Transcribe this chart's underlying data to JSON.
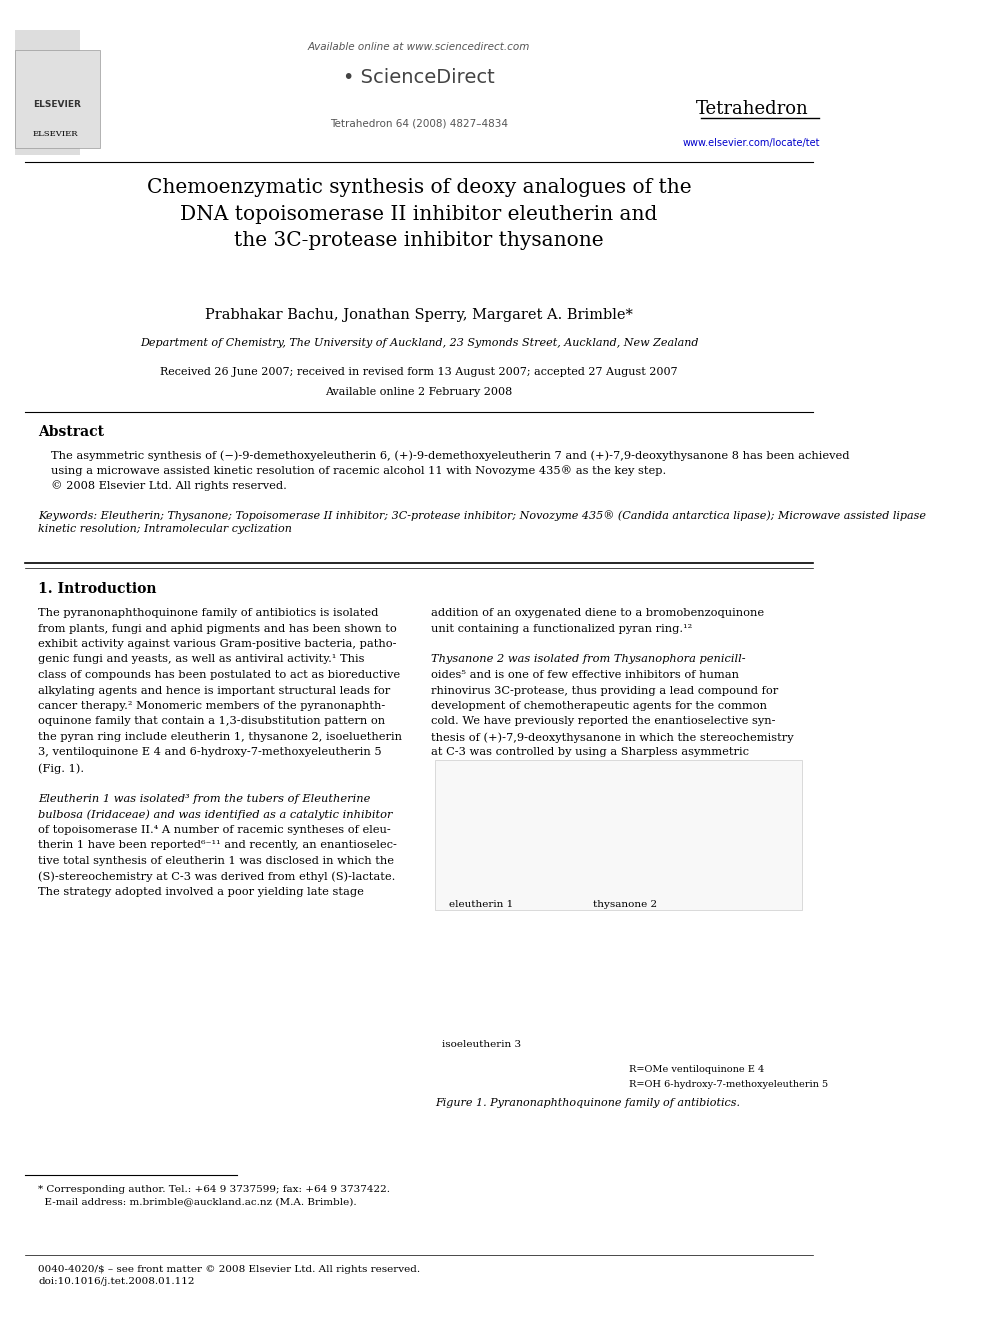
{
  "page_width": 9.92,
  "page_height": 13.23,
  "bg_color": "#ffffff",
  "header": {
    "available_online": "Available online at www.sciencedirect.com",
    "sciencedirect": "ScienceDirect",
    "journal": "Tetrahedron",
    "journal_info": "Tetrahedron 64 (2008) 4827–4834",
    "url": "www.elsevier.com/locate/tet"
  },
  "title": "Chemoenzymatic synthesis of deoxy analogues of the\nDNA topoisomerase II inhibitor eleutherin and\nthe 3C-protease inhibitor thysanone",
  "authors": "Prabhakar Bachu, Jonathan Sperry, Margaret A. Brimble*",
  "affiliation": "Department of Chemistry, The University of Auckland, 23 Symonds Street, Auckland, New Zealand",
  "dates": "Received 26 June 2007; received in revised form 13 August 2007; accepted 27 August 2007",
  "available": "Available online 2 February 2008",
  "abstract_title": "Abstract",
  "abstract_text": "The asymmetric synthesis of (−)-9-demethoxyeleutherin 6, (+)-9-demethoxyeleutherin 7 and (+)-7,9-deoxythysanone 8 has been achieved\nusing a microwave assisted kinetic resolution of racemic alcohol 11 with Novozyme 435® as the key step.\n© 2008 Elsevier Ltd. All rights reserved.",
  "keywords_label": "Keywords:",
  "keywords_text": "Eleutherin; Thysanone; Topoisomerase II inhibitor; 3C-protease inhibitor; Novozyme 435® (Candida antarctica lipase); Microwave assisted lipase\nkinetic resolution; Intramolecular cyclization",
  "section1_title": "1. Introduction",
  "section1_col1": "The pyranonaphthoquinone family of antibiotics is isolated\nfrom plants, fungi and aphid pigments and has been shown to\nexhibit activity against various Gram-positive bacteria, patho-\ngenic fungi and yeasts, as well as antiviral activity.¹ This\nclass of compounds has been postulated to act as bioreductive\nalkylating agents and hence is important structural leads for\ncancer therapy.² Monomeric members of the pyranonaphth-\noquinone family that contain a 1,3-disubstitution pattern on\nthe pyran ring include eleutherin 1, thysanone 2, isoeluetherin\n3, ventiloquinone E 4 and 6-hydroxy-7-methoxyeleutherin 5\n(Fig. 1).\n\nEleutherin 1 was isolated³ from the tubers of Eleutherine\nbulbosa (Iridaceae) and was identified as a catalytic inhibitor\nof topoisomerase II.⁴ A number of racemic syntheses of eleu-\ntherin 1 have been reported⁶⁻¹¹ and recently, an enantioselec-\ntive total synthesis of eleutherin 1 was disclosed in which the\n(S)-stereochemistry at C-3 was derived from ethyl (S)-lactate.\nThe strategy adopted involved a poor yielding late stage",
  "section1_col2": "addition of an oxygenated diene to a bromobenzoquinone\nunit containing a functionalized pyran ring.¹²\n\nThysanone 2 was isolated from Thysanophora penicill-\noides⁵ and is one of few effective inhibitors of human\nrhinovirus 3C-protease, thus providing a lead compound for\ndevelopment of chemotherapeutic agents for the common\ncold. We have previously reported the enantioselective syn-\nthesis of (+)-7,9-deoxythysanone in which the stereochemistry\nat C-3 was controlled by using a Sharpless asymmetric",
  "figure1_caption": "Figure 1. Pyranonaphthoquinone family of antibiotics.",
  "footnote_star": "* Corresponding author. Tel.: +64 9 3737599; fax: +64 9 3737422.\n  E-mail address: m.brimble@auckland.ac.nz (M.A. Brimble).",
  "footer": "0040-4020/$ – see front matter © 2008 Elsevier Ltd. All rights reserved.\ndoi:10.1016/j.tet.2008.01.112"
}
